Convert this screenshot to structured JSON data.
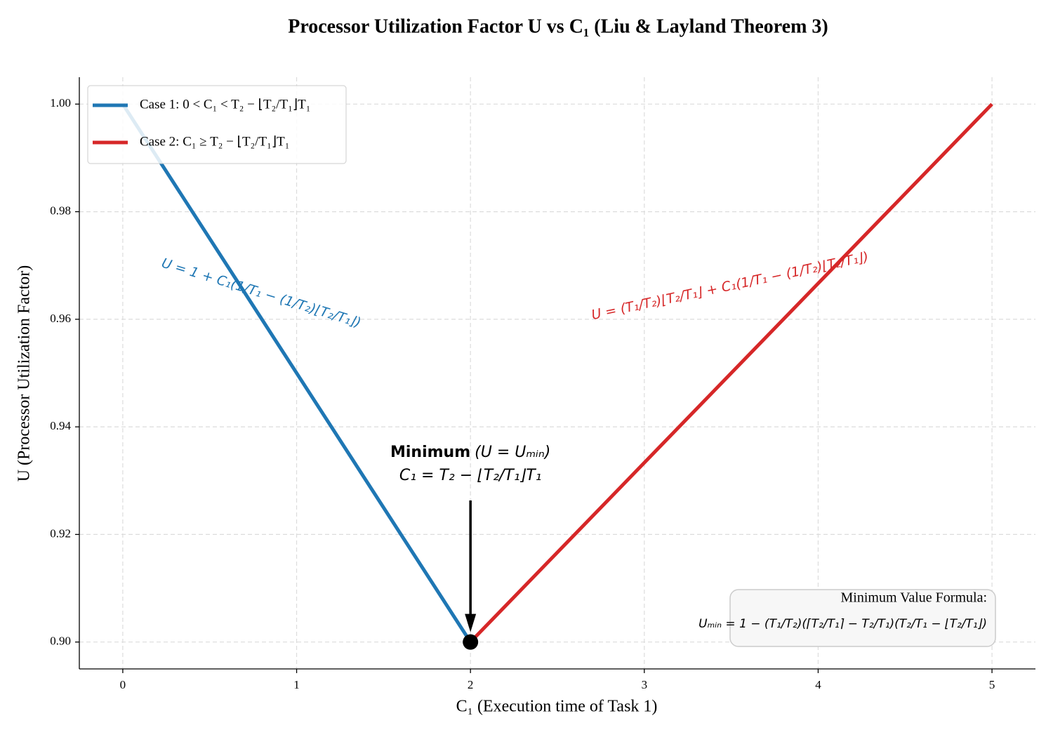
{
  "chart_data": {
    "type": "line",
    "title": "Processor Utilization Factor U vs C₁ (Liu & Layland Theorem 3)",
    "x_label": "C₁ (Execution time of Task 1)",
    "y_label": "U (Processor Utilization Factor)",
    "xlim": [
      -0.25,
      5.25
    ],
    "ylim": [
      0.895,
      1.005
    ],
    "xticks": [
      0,
      1,
      2,
      3,
      4,
      5
    ],
    "yticks": [
      {
        "value": 0.9,
        "label": "0.90"
      },
      {
        "value": 0.92,
        "label": "0.92"
      },
      {
        "value": 0.94,
        "label": "0.94"
      },
      {
        "value": 0.96,
        "label": "0.96"
      },
      {
        "value": 0.98,
        "label": "0.98"
      },
      {
        "value": 1.0,
        "label": "1.00"
      }
    ],
    "grid": true,
    "legend": "upper left",
    "series": [
      {
        "name": "Case 1: 0 < C₁ < T₂ − ⌊T₂/T₁⌋T₁",
        "color": "#1f77b4",
        "x": [
          0,
          2
        ],
        "values": [
          1.0,
          0.9
        ],
        "formula": "U = 1 + C₁(1/T₁ − (1/T₂)⌊T₂/T₁⌋)"
      },
      {
        "name": "Case 2: C₁ ≥ T₂ − ⌊T₂/T₁⌋T₁",
        "color": "#d62728",
        "x": [
          2,
          5
        ],
        "values": [
          0.9,
          1.0
        ],
        "formula": "U = (T₁/T₂)⌊T₂/T₁⌋ + C₁(1/T₁ − (1/T₂)⌊T₂/T₁⌋)"
      }
    ],
    "annotation": {
      "title": "Minimum",
      "title_suffix": "(U = Uₘᵢₙ)",
      "line2": "C₁ = T₂ − ⌊T₂/T₁⌋T₁"
    },
    "formula_box": {
      "title": "Minimum Value Formula:",
      "formula": "Uₘᵢₙ = 1 − (T₁/T₂)(⌈T₂/T₁⌉ − T₂/T₁)(T₂/T₁ − ⌊T₂/T₁⌋)"
    }
  }
}
